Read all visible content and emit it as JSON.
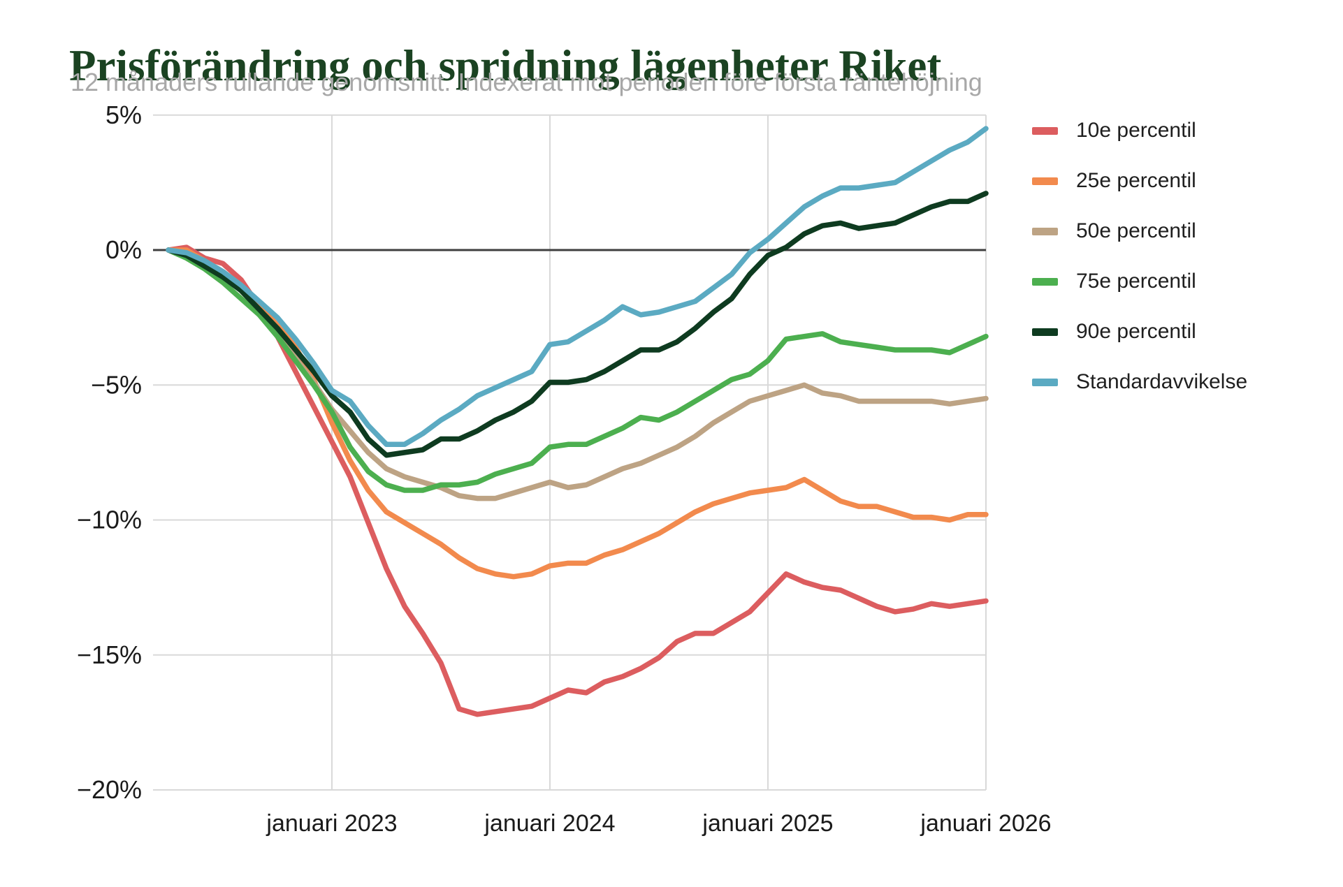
{
  "title": "Prisförändring och spridning lägenheter Riket",
  "subtitle": "12 månaders rullande genomsnitt. Indexerat mot perioden före första räntehöjning",
  "colors": {
    "title_green": "#1b4322",
    "subtitle_gray": "#a8a8a8",
    "gridline": "#d9d9d9",
    "zero_line": "#3f3f3f",
    "axis_text": "#1a1a1a"
  },
  "chart_data": {
    "type": "line",
    "title": "Prisförändring och spridning lägenheter Riket",
    "subtitle": "12 månaders rullande genomsnitt. Indexerat mot perioden före första räntehöjning",
    "x_unit": "månad (12 mån rullande, start april 2022)",
    "ylim": [
      -20,
      5
    ],
    "grid": true,
    "legend_position": "right",
    "y_ticks": [
      {
        "value": 5,
        "label": "5%"
      },
      {
        "value": 0,
        "label": "0%"
      },
      {
        "value": -5,
        "label": "−5%"
      },
      {
        "value": -10,
        "label": "−10%"
      },
      {
        "value": -15,
        "label": "−15%"
      },
      {
        "value": -20,
        "label": "−20%"
      }
    ],
    "x_ticks": [
      {
        "index": 9,
        "label": "januari 2023"
      },
      {
        "index": 21,
        "label": "januari 2024"
      },
      {
        "index": 33,
        "label": "januari 2025"
      },
      {
        "index": 45,
        "label": "januari 2026"
      }
    ],
    "series": [
      {
        "name": "10e percentil",
        "color": "#dc5d5f",
        "values": [
          0.0,
          0.1,
          -0.3,
          -0.5,
          -1.1,
          -2.1,
          -3.2,
          -4.5,
          -5.8,
          -7.1,
          -8.4,
          -10.1,
          -11.8,
          -13.2,
          -14.2,
          -15.3,
          -17.0,
          -17.2,
          -17.1,
          -17.0,
          -16.9,
          -16.6,
          -16.3,
          -16.4,
          -16.0,
          -15.8,
          -15.5,
          -15.1,
          -14.5,
          -14.2,
          -14.2,
          -13.8,
          -13.4,
          -12.7,
          -12.0,
          -12.3,
          -12.5,
          -12.6,
          -12.9,
          -13.2,
          -13.4,
          -13.3,
          -13.1,
          -13.2,
          -13.1,
          -13.0
        ]
      },
      {
        "name": "25e percentil",
        "color": "#f28a4d",
        "values": [
          0.0,
          0.0,
          -0.4,
          -0.8,
          -1.3,
          -2.0,
          -2.8,
          -3.6,
          -4.8,
          -6.4,
          -7.8,
          -8.9,
          -9.7,
          -10.1,
          -10.5,
          -10.9,
          -11.4,
          -11.8,
          -12.0,
          -12.1,
          -12.0,
          -11.7,
          -11.6,
          -11.6,
          -11.3,
          -11.1,
          -10.8,
          -10.5,
          -10.1,
          -9.7,
          -9.4,
          -9.2,
          -9.0,
          -8.9,
          -8.8,
          -8.5,
          -8.9,
          -9.3,
          -9.5,
          -9.5,
          -9.7,
          -9.9,
          -9.9,
          -10.0,
          -9.8,
          -9.8
        ]
      },
      {
        "name": "50e percentil",
        "color": "#bda384",
        "values": [
          0.0,
          -0.1,
          -0.5,
          -0.9,
          -1.5,
          -2.2,
          -3.0,
          -4.0,
          -4.9,
          -5.9,
          -6.7,
          -7.5,
          -8.1,
          -8.4,
          -8.6,
          -8.8,
          -9.1,
          -9.2,
          -9.2,
          -9.0,
          -8.8,
          -8.6,
          -8.8,
          -8.7,
          -8.4,
          -8.1,
          -7.9,
          -7.6,
          -7.3,
          -6.9,
          -6.4,
          -6.0,
          -5.6,
          -5.4,
          -5.2,
          -5.0,
          -5.3,
          -5.4,
          -5.6,
          -5.6,
          -5.6,
          -5.6,
          -5.6,
          -5.7,
          -5.6,
          -5.5
        ]
      },
      {
        "name": "75e percentil",
        "color": "#4caf4f",
        "values": [
          0.0,
          -0.3,
          -0.7,
          -1.2,
          -1.8,
          -2.4,
          -3.2,
          -4.1,
          -5.0,
          -6.0,
          -7.3,
          -8.2,
          -8.7,
          -8.9,
          -8.9,
          -8.7,
          -8.7,
          -8.6,
          -8.3,
          -8.1,
          -7.9,
          -7.3,
          -7.2,
          -7.2,
          -6.9,
          -6.6,
          -6.2,
          -6.3,
          -6.0,
          -5.6,
          -5.2,
          -4.8,
          -4.6,
          -4.1,
          -3.3,
          -3.2,
          -3.1,
          -3.4,
          -3.5,
          -3.6,
          -3.7,
          -3.7,
          -3.7,
          -3.8,
          -3.5,
          -3.2
        ]
      },
      {
        "name": "90e percentil",
        "color": "#0e3b20",
        "values": [
          0.0,
          -0.2,
          -0.6,
          -1.0,
          -1.5,
          -2.2,
          -2.9,
          -3.7,
          -4.5,
          -5.4,
          -6.0,
          -7.0,
          -7.6,
          -7.5,
          -7.4,
          -7.0,
          -7.0,
          -6.7,
          -6.3,
          -6.0,
          -5.6,
          -4.9,
          -4.9,
          -4.8,
          -4.5,
          -4.1,
          -3.7,
          -3.7,
          -3.4,
          -2.9,
          -2.3,
          -1.8,
          -0.9,
          -0.2,
          0.1,
          0.6,
          0.9,
          1.0,
          0.8,
          0.9,
          1.0,
          1.3,
          1.6,
          1.8,
          1.8,
          2.1
        ]
      },
      {
        "name": "Standardavvikelse",
        "color": "#5baac2",
        "values": [
          0.0,
          -0.1,
          -0.4,
          -0.8,
          -1.3,
          -1.9,
          -2.5,
          -3.3,
          -4.2,
          -5.2,
          -5.6,
          -6.5,
          -7.2,
          -7.2,
          -6.8,
          -6.3,
          -5.9,
          -5.4,
          -5.1,
          -4.8,
          -4.5,
          -3.5,
          -3.4,
          -3.0,
          -2.6,
          -2.1,
          -2.4,
          -2.3,
          -2.1,
          -1.9,
          -1.4,
          -0.9,
          -0.1,
          0.4,
          1.0,
          1.6,
          2.0,
          2.3,
          2.3,
          2.4,
          2.5,
          2.9,
          3.3,
          3.7,
          4.0,
          4.5
        ]
      }
    ]
  }
}
